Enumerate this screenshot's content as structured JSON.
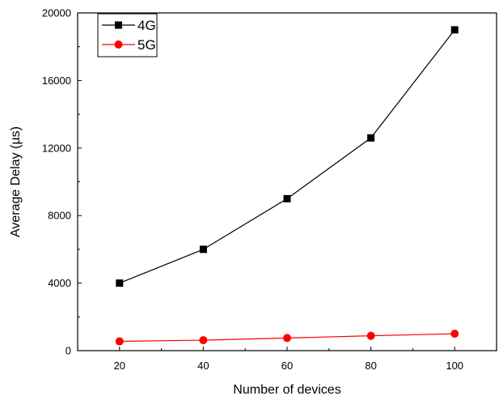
{
  "chart_data": {
    "type": "line",
    "title": "",
    "xlabel": "Number of devices",
    "ylabel": "Average Delay (µs)",
    "x": [
      20,
      40,
      60,
      80,
      100
    ],
    "xlim": [
      10,
      110
    ],
    "ylim": [
      0,
      20000
    ],
    "xticks": [
      20,
      40,
      60,
      80,
      100
    ],
    "yticks": [
      0,
      4000,
      8000,
      12000,
      16000,
      20000
    ],
    "grid": false,
    "legend_position": "top-left",
    "series": [
      {
        "name": "4G",
        "values": [
          4000,
          6000,
          9000,
          12600,
          19000
        ],
        "color": "#000000",
        "marker": "square"
      },
      {
        "name": "5G",
        "values": [
          550,
          620,
          750,
          880,
          1000
        ],
        "color": "#ff0000",
        "marker": "circle"
      }
    ]
  }
}
